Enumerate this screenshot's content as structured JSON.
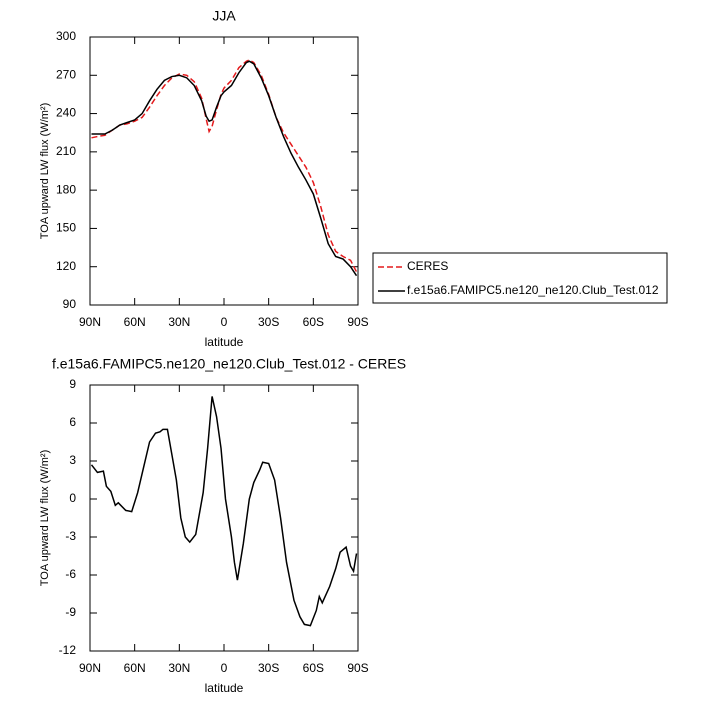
{
  "chart_data": [
    {
      "type": "line",
      "title": "JJA",
      "xlabel": "latitude",
      "ylabel": "TOA upward LW flux (W/m²)",
      "xlim": [
        90,
        -90
      ],
      "xticks": [
        {
          "value": 90,
          "label": "90N"
        },
        {
          "value": 60,
          "label": "60N"
        },
        {
          "value": 30,
          "label": "30N"
        },
        0,
        {
          "value": -30,
          "label": "30S"
        },
        {
          "value": -60,
          "label": "60S"
        },
        {
          "value": -90,
          "label": "90S"
        }
      ],
      "ylim": [
        90,
        300
      ],
      "yticks": [
        90,
        120,
        150,
        180,
        210,
        240,
        270,
        300
      ],
      "legend": "outside-right",
      "x": [
        89,
        85,
        80,
        75,
        70,
        65,
        60,
        55,
        50,
        45,
        40,
        35,
        30,
        25,
        20,
        15,
        12,
        10,
        8,
        5,
        2,
        0,
        -5,
        -10,
        -15,
        -17,
        -20,
        -25,
        -30,
        -35,
        -40,
        -45,
        -50,
        -55,
        -60,
        -65,
        -70,
        -75,
        -80,
        -85,
        -89
      ],
      "series": [
        {
          "name": "CERES",
          "color": "#e41a1c",
          "dashed": true,
          "values": [
            221,
            222,
            223,
            227,
            231,
            232,
            234,
            237,
            245,
            254,
            262,
            268,
            271,
            270,
            265,
            252,
            236,
            226,
            230,
            243,
            255,
            260,
            266,
            276,
            281,
            282,
            280,
            270,
            255,
            237,
            225,
            216,
            207,
            198,
            186,
            167,
            145,
            132,
            128,
            125,
            116
          ]
        },
        {
          "name": "f.e15a6.FAMIPC5.ne120_ne120.Club_Test.012",
          "color": "#000000",
          "dashed": false,
          "values": [
            224,
            224,
            224,
            227,
            231,
            233,
            235,
            240,
            250,
            259,
            266,
            269,
            270,
            268,
            262,
            250,
            238,
            234,
            235,
            245,
            254,
            257,
            262,
            272,
            280,
            281,
            279,
            268,
            254,
            237,
            222,
            209,
            198,
            188,
            177,
            158,
            138,
            128,
            126,
            120,
            113
          ]
        }
      ]
    },
    {
      "type": "line",
      "title": "f.e15a6.FAMIPC5.ne120_ne120.Club_Test.012 - CERES",
      "xlabel": "latitude",
      "ylabel": "TOA upward LW flux (W/m²)",
      "xlim": [
        90,
        -90
      ],
      "xticks": [
        {
          "value": 90,
          "label": "90N"
        },
        {
          "value": 60,
          "label": "60N"
        },
        {
          "value": 30,
          "label": "30N"
        },
        0,
        {
          "value": -30,
          "label": "30S"
        },
        {
          "value": -60,
          "label": "60S"
        },
        {
          "value": -90,
          "label": "90S"
        }
      ],
      "ylim": [
        -12,
        9
      ],
      "yticks": [
        -12,
        -9,
        -6,
        -3,
        0,
        3,
        6,
        9
      ],
      "color": "#000000",
      "x": [
        89,
        85,
        81,
        79,
        76,
        73,
        71,
        66,
        62,
        58,
        54,
        50,
        46,
        43,
        41,
        38,
        35,
        32,
        29,
        26,
        23,
        19,
        14,
        11,
        8,
        5,
        2,
        -1,
        -5,
        -7,
        -9,
        -13,
        -17,
        -20,
        -24,
        -26,
        -30,
        -34,
        -38,
        -42,
        -47,
        -51,
        -54,
        -58,
        -62,
        -64,
        -66,
        -71,
        -75,
        -78,
        -82,
        -85,
        -87,
        -89
      ],
      "values": [
        2.7,
        2.1,
        2.2,
        1.0,
        0.6,
        -0.5,
        -0.3,
        -0.9,
        -1.0,
        0.5,
        2.5,
        4.5,
        5.2,
        5.3,
        5.5,
        5.5,
        3.5,
        1.5,
        -1.5,
        -3.0,
        -3.4,
        -2.8,
        0.5,
        4.0,
        8.1,
        6.5,
        4.0,
        0.0,
        -3.0,
        -5.0,
        -6.4,
        -3.5,
        0.0,
        1.3,
        2.3,
        2.9,
        2.8,
        1.5,
        -1.5,
        -5.0,
        -8.0,
        -9.3,
        -9.9,
        -10.0,
        -8.8,
        -7.7,
        -8.2,
        -6.9,
        -5.5,
        -4.2,
        -3.8,
        -5.3,
        -5.7,
        -4.3
      ]
    }
  ]
}
